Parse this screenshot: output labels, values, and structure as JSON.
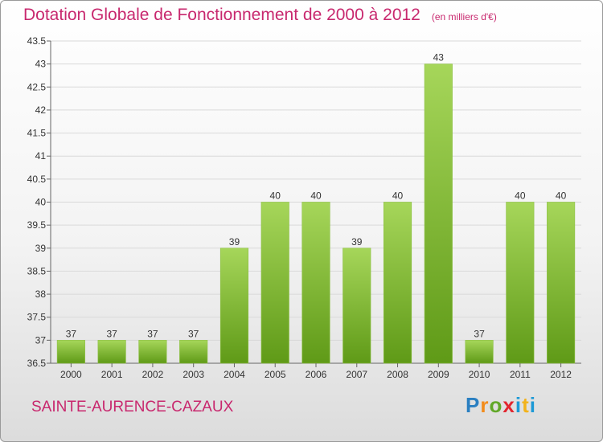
{
  "header": {
    "title": "Dotation Globale de Fonctionnement de 2000 à 2012",
    "unit": "(en milliers d'€)"
  },
  "footer": {
    "commune": "SAINTE-AURENCE-CAZAUX",
    "logo": {
      "p": "P",
      "r": "r",
      "o": "o",
      "x": "x",
      "i1": "i",
      "t": "t",
      "i2": "i"
    }
  },
  "colors": {
    "title": "#c8286e",
    "bar_light": "#a6d65a",
    "bar_dark": "#5f9a17",
    "grid": "#d9d9d9"
  },
  "chart_data": {
    "type": "bar",
    "title": "Dotation Globale de Fonctionnement de 2000 à 2012",
    "subtitle": "(en milliers d'€)",
    "categories": [
      "2000",
      "2001",
      "2002",
      "2003",
      "2004",
      "2005",
      "2006",
      "2007",
      "2008",
      "2009",
      "2010",
      "2011",
      "2012"
    ],
    "values": [
      37,
      37,
      37,
      37,
      39,
      40,
      40,
      39,
      40,
      43,
      37,
      40,
      40
    ],
    "ylim": [
      36.5,
      43.5
    ],
    "yticks": [
      "36.5",
      "37",
      "37.5",
      "38",
      "38.5",
      "39",
      "39.5",
      "40",
      "40.5",
      "41",
      "41.5",
      "42",
      "42.5",
      "43",
      "43.5"
    ],
    "grid": true,
    "legend": "none"
  }
}
